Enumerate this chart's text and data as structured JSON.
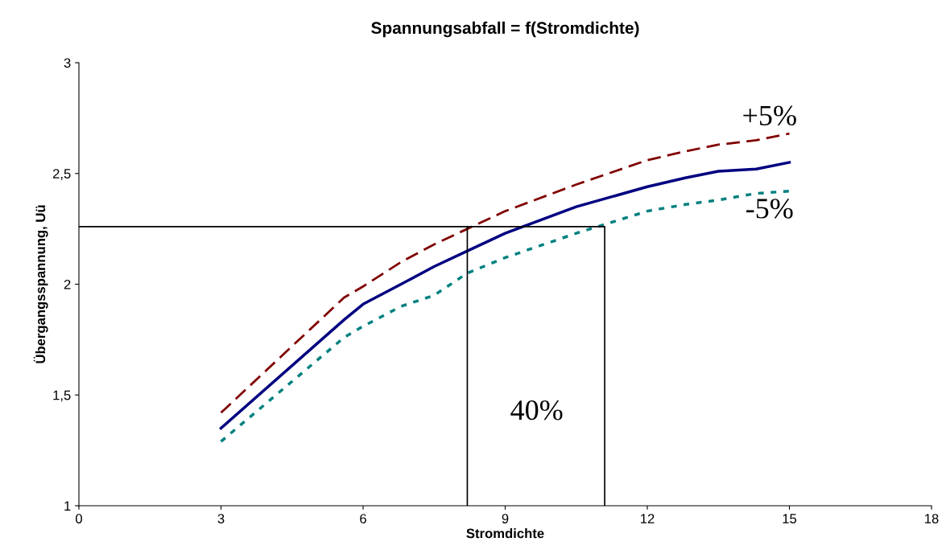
{
  "chart_data": {
    "type": "line",
    "title": "Spannungsabfall = f(Stromdichte)",
    "xlabel": "Stromdichte",
    "ylabel": "Übergangsspannung, Uü",
    "xlim": [
      0,
      18
    ],
    "xticks": [
      0,
      3,
      6,
      9,
      12,
      15,
      18
    ],
    "ylim": [
      1,
      3
    ],
    "yticks": [
      1,
      {
        "value": 1.5,
        "label": "1,5"
      },
      2,
      {
        "value": 2.5,
        "label": "2,5"
      },
      3
    ],
    "grid": false,
    "marker": "none",
    "x": [
      3,
      5.6,
      6,
      6.8,
      7.5,
      8.2,
      9,
      10.5,
      12,
      12.8,
      13.5,
      14.3,
      15
    ],
    "series": [
      {
        "color": "#000080",
        "line_style": "solid",
        "values": [
          1.35,
          1.84,
          1.91,
          2.0,
          2.08,
          2.15,
          2.23,
          2.35,
          2.44,
          2.48,
          2.51,
          2.52,
          2.55
        ]
      },
      {
        "color": "#800000",
        "line_style": "dashed",
        "values": [
          1.42,
          1.94,
          1.99,
          2.1,
          2.18,
          2.25,
          2.33,
          2.45,
          2.56,
          2.6,
          2.63,
          2.65,
          2.68
        ]
      },
      {
        "color": "#008080",
        "line_style": "dotted",
        "values": [
          1.29,
          1.76,
          1.81,
          1.9,
          1.95,
          2.05,
          2.12,
          2.23,
          2.33,
          2.36,
          2.38,
          2.41,
          2.42
        ]
      },
      {
        "color": "#000000",
        "line_style": "solid",
        "x": [
          0,
          11.1,
          11.1
        ],
        "values": [
          2.26,
          2.26,
          1
        ]
      },
      {
        "color": "#000000",
        "line_style": "solid",
        "x": [
          8.2,
          8.2
        ],
        "values": [
          2.26,
          1
        ]
      }
    ],
    "annotations": [
      "+5%",
      "-5%",
      "40%"
    ]
  }
}
